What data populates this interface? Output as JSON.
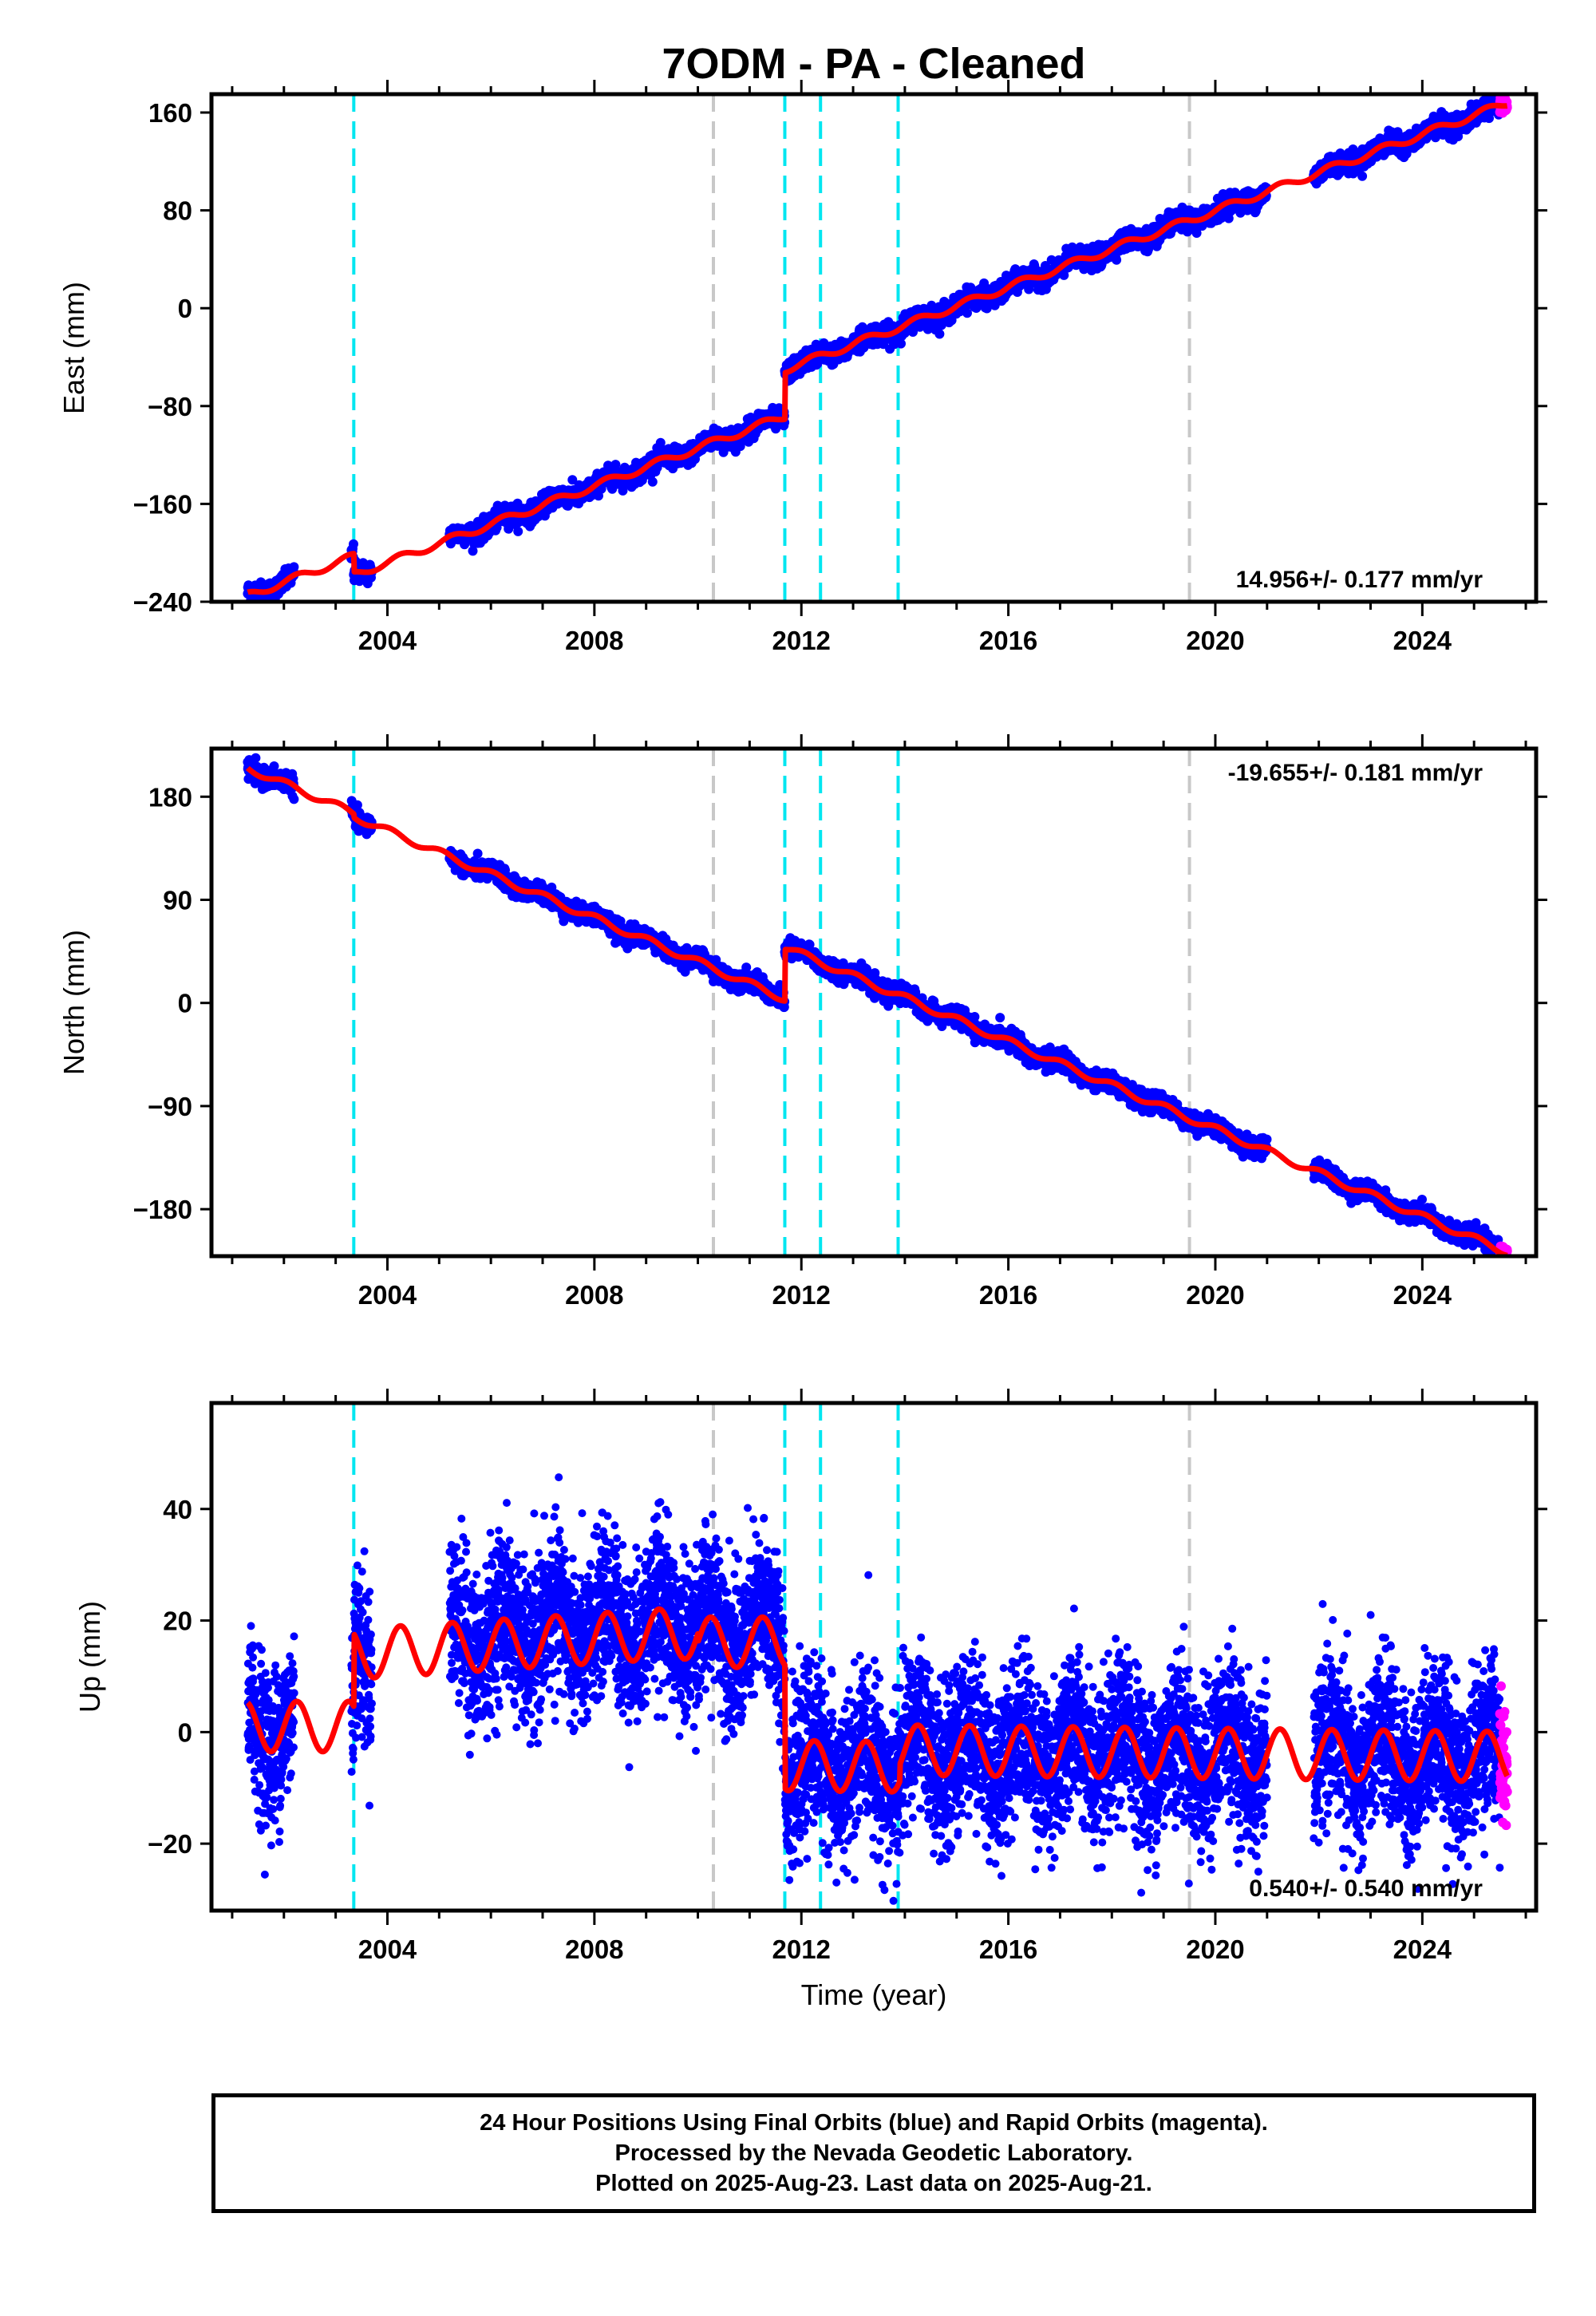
{
  "title": "7ODM  - PA - Cleaned",
  "colors": {
    "final_orbits": "#0000ff",
    "rapid_orbits": "#ff00ff",
    "model_fit": "#ff0000",
    "event_cyan": "#00e6f0",
    "event_gray": "#c8c8c8"
  },
  "chart_data": [
    {
      "type": "scatter",
      "panel": "east",
      "ylabel": "East (mm)",
      "xlabel": "",
      "xlim": [
        2000.6,
        2026.2
      ],
      "ylim": [
        -240,
        175
      ],
      "yticks": [
        160,
        80,
        0,
        -80,
        -160,
        -240
      ],
      "xticks": [
        2004,
        2008,
        2012,
        2016,
        2020,
        2024
      ],
      "rate_label": "14.956+/- 0.177 mm/yr",
      "rate_position": "bottom-right",
      "grid": false
    },
    {
      "type": "scatter",
      "panel": "north",
      "ylabel": "North (mm)",
      "xlabel": "",
      "xlim": [
        2000.6,
        2026.2
      ],
      "ylim": [
        -221,
        222
      ],
      "yticks": [
        180,
        90,
        0,
        -90,
        -180
      ],
      "xticks": [
        2004,
        2008,
        2012,
        2016,
        2020,
        2024
      ],
      "rate_label": "-19.655+/- 0.181 mm/yr",
      "rate_position": "top-right",
      "grid": false
    },
    {
      "type": "scatter",
      "panel": "up",
      "ylabel": "Up (mm)",
      "xlabel": "Time (year)",
      "xlim": [
        2000.6,
        2026.2
      ],
      "ylim": [
        -32,
        59
      ],
      "yticks": [
        40,
        20,
        0,
        -20
      ],
      "xticks": [
        2004,
        2008,
        2012,
        2016,
        2020,
        2024
      ],
      "rate_label": "0.540+/- 0.540 mm/yr",
      "rate_position": "bottom-right",
      "grid": false
    }
  ],
  "events": {
    "cyan": [
      2003.35,
      2011.68,
      2012.37,
      2013.87
    ],
    "gray": [
      2010.3,
      2019.5
    ]
  },
  "footer": {
    "line1": "24 Hour Positions Using Final Orbits (blue) and Rapid Orbits (magenta).",
    "line2": "Processed by the Nevada Geodetic Laboratory.",
    "line3": "Plotted on 2025-Aug-23. Last data on 2025-Aug-21."
  }
}
